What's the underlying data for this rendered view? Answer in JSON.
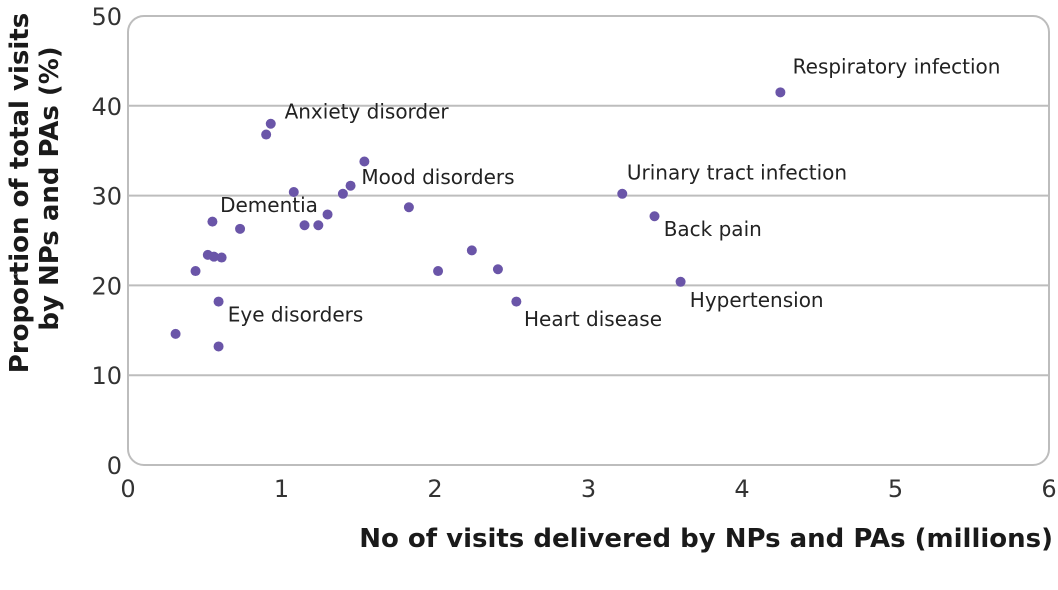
{
  "chart_data": {
    "type": "scatter",
    "xlabel": "No of  visits delivered by NPs and PAs (millions)",
    "ylabel_lines": [
      "Proportion of total visits",
      "by NPs and PAs (%)"
    ],
    "xlim": [
      0,
      6
    ],
    "ylim": [
      0,
      50
    ],
    "x_ticks": [
      0,
      1,
      2,
      3,
      4,
      5,
      6
    ],
    "y_ticks": [
      0,
      10,
      20,
      30,
      40,
      50
    ],
    "grid": "horizontal",
    "point_color": "#6a55a8",
    "points": [
      {
        "x": 4.25,
        "y": 41.5
      },
      {
        "x": 0.93,
        "y": 38.0
      },
      {
        "x": 0.9,
        "y": 36.8
      },
      {
        "x": 1.54,
        "y": 33.8
      },
      {
        "x": 1.45,
        "y": 31.1
      },
      {
        "x": 1.4,
        "y": 30.2
      },
      {
        "x": 1.08,
        "y": 30.4
      },
      {
        "x": 1.83,
        "y": 28.7
      },
      {
        "x": 1.3,
        "y": 27.9
      },
      {
        "x": 1.15,
        "y": 26.7
      },
      {
        "x": 1.24,
        "y": 26.7
      },
      {
        "x": 0.55,
        "y": 27.1
      },
      {
        "x": 0.73,
        "y": 26.3
      },
      {
        "x": 0.52,
        "y": 23.4
      },
      {
        "x": 0.56,
        "y": 23.2
      },
      {
        "x": 0.61,
        "y": 23.1
      },
      {
        "x": 0.44,
        "y": 21.6
      },
      {
        "x": 0.59,
        "y": 18.2
      },
      {
        "x": 0.31,
        "y": 14.6
      },
      {
        "x": 0.59,
        "y": 13.2
      },
      {
        "x": 2.02,
        "y": 21.6
      },
      {
        "x": 2.24,
        "y": 23.9
      },
      {
        "x": 2.41,
        "y": 21.8
      },
      {
        "x": 2.53,
        "y": 18.2
      },
      {
        "x": 3.22,
        "y": 30.2
      },
      {
        "x": 3.43,
        "y": 27.7
      },
      {
        "x": 3.6,
        "y": 20.4
      }
    ],
    "annotations": [
      {
        "text": "Respiratory infection",
        "x": 4.33,
        "y": 43.6
      },
      {
        "text": "Anxiety disorder",
        "x": 1.02,
        "y": 38.6
      },
      {
        "text": "Mood disorders",
        "x": 1.52,
        "y": 31.3
      },
      {
        "text": "Dementia",
        "x": 0.6,
        "y": 28.2
      },
      {
        "text": "Urinary tract infection",
        "x": 3.25,
        "y": 31.8
      },
      {
        "text": "Back pain",
        "x": 3.49,
        "y": 25.5
      },
      {
        "text": "Hypertension",
        "x": 3.66,
        "y": 17.6
      },
      {
        "text": "Heart disease",
        "x": 2.58,
        "y": 15.5
      },
      {
        "text": "Eye disorders",
        "x": 0.65,
        "y": 16.0
      }
    ]
  }
}
